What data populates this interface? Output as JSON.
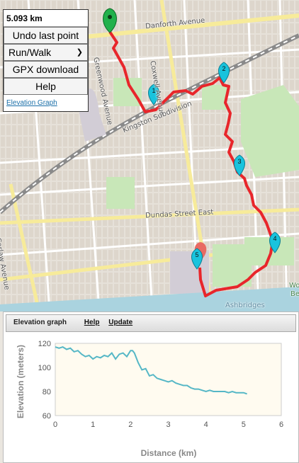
{
  "panel": {
    "distance": "5.093 km",
    "undo_label": "Undo last point",
    "mode_value": "Run/Walk",
    "gpx_label": "GPX download",
    "help_label": "Help",
    "elevation_link": "Elevation Graph"
  },
  "map": {
    "labels": {
      "danforth": "Danforth Avenue",
      "coxwell": "Coxwell Avenue",
      "greenwood": "Greenwood Avenue",
      "kingston": "Kingston Subdivision",
      "dundas": "Dundas Street East",
      "carlaw": "Carlaw Avenue",
      "ashbridges": "Ashbridges",
      "wood": "Woo",
      "be": "Be"
    },
    "markers": [
      "1",
      "2",
      "3",
      "4",
      "5"
    ],
    "route_color": "#e8262b",
    "marker_color": "#19c3dd",
    "start_color": "#22b14c"
  },
  "elevation": {
    "title": "Elevation graph",
    "help_link": "Help",
    "update_link": "Update",
    "color": "#55b7c6"
  },
  "chart_data": {
    "type": "line",
    "title": "",
    "xlabel": "Distance (km)",
    "ylabel": "Elevation (meters)",
    "xlim": [
      0,
      6
    ],
    "ylim": [
      60,
      120
    ],
    "xticks": [
      0,
      1,
      2,
      3,
      4,
      5,
      6
    ],
    "yticks": [
      60,
      80,
      100,
      120
    ],
    "grid": false,
    "series": [
      {
        "x": [
          0,
          0.1,
          0.2,
          0.3,
          0.4,
          0.5,
          0.6,
          0.7,
          0.8,
          0.9,
          1.0,
          1.1,
          1.2,
          1.3,
          1.4,
          1.5,
          1.6,
          1.7,
          1.8,
          1.9,
          2.0,
          2.05,
          2.1,
          2.2,
          2.3,
          2.4,
          2.5,
          2.6,
          2.7,
          2.8,
          2.9,
          3.0,
          3.1,
          3.2,
          3.3,
          3.4,
          3.5,
          3.6,
          3.7,
          3.8,
          3.9,
          4.0,
          4.1,
          4.2,
          4.3,
          4.4,
          4.5,
          4.6,
          4.7,
          4.8,
          4.9,
          5.0,
          5.09
        ],
        "y": [
          117,
          116,
          117,
          115,
          116,
          113,
          114,
          111,
          109,
          110,
          107,
          109,
          108,
          110,
          109,
          112,
          107,
          111,
          112,
          109,
          114,
          114,
          112,
          104,
          98,
          99,
          93,
          94,
          91,
          90,
          89,
          88,
          89,
          87,
          86,
          85,
          85,
          83,
          82,
          82,
          81,
          80,
          81,
          80,
          80,
          80,
          80,
          79,
          80,
          79,
          79,
          79,
          78
        ]
      }
    ]
  }
}
